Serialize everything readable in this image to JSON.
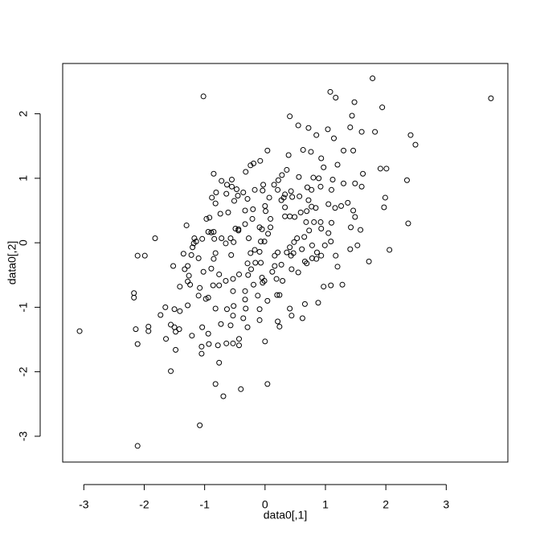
{
  "chart_data": {
    "type": "scatter",
    "x_label": "data0[,1]",
    "y_label": "data0[,2]",
    "color": "#000000",
    "xlim": [
      -3.35,
      4.02
    ],
    "ylim": [
      -3.4,
      2.78
    ],
    "xticks": [
      -3,
      -2,
      -1,
      0,
      1,
      2,
      3
    ],
    "yticks": [
      -3,
      -2,
      -1,
      0,
      1,
      2
    ],
    "x": [
      -3.07,
      -1.02,
      3.74,
      -2.11,
      -1.08,
      1.78,
      1.08,
      1.17,
      1.94,
      1.48,
      2.49,
      2.41,
      2.35,
      2.37,
      2.06,
      1.99,
      1.97,
      1.91,
      2.01,
      1.72,
      1.6,
      1.82,
      1.44,
      1.41,
      0.41,
      0.55,
      0.72,
      0.85,
      1.04,
      1.14,
      0.04,
      0.39,
      0.63,
      0.76,
      0.93,
      0.97,
      1.2,
      1.3,
      1.46,
      -0.08,
      -0.19,
      -0.24,
      -0.32,
      0.36,
      0.28,
      0.56,
      0.8,
      0.89,
      1.1,
      1.49,
      1.6,
      1.62,
      1.37,
      1.26,
      1.46,
      1.49,
      1.58,
      1.42,
      1.53,
      1.41,
      1.1,
      1.05,
      1.09,
      0.99,
      0.93,
      0.85,
      1.17,
      1.2,
      1.09,
      0.97,
      1.28,
      0.88,
      0.66,
      0.62,
      0.41,
      0.44,
      0.21,
      0.24,
      0.0,
      -0.09,
      0.04,
      -0.4,
      -0.69,
      -0.82,
      -0.76,
      -0.43,
      -0.43,
      -0.53,
      -0.64,
      -0.73,
      -0.78,
      -0.93,
      -1.05,
      -1.05,
      -0.94,
      -1.04,
      -1.21,
      -1.42,
      -1.5,
      -1.56,
      -1.48,
      -1.48,
      -1.64,
      -1.56,
      -1.93,
      -1.93,
      -2.14,
      -2.11,
      -2.17,
      -2.17,
      -2.11,
      -1.99,
      -1.82,
      -1.73,
      -1.65,
      -1.5,
      -1.41,
      -1.41,
      -1.52,
      -1.33,
      -1.28,
      -1.26,
      -1.28,
      -1.24,
      -1.28,
      -1.3,
      -1.22,
      -1.2,
      -1.14,
      -1.18,
      -1.08,
      -1.1,
      -0.98,
      -0.94,
      -0.86,
      -0.76,
      -0.65,
      -0.53,
      -0.43,
      -0.89,
      -0.84,
      -0.85,
      -0.94,
      -0.88,
      -0.82,
      -0.92,
      -0.74,
      -0.61,
      -0.72,
      -0.57,
      -0.65,
      -0.82,
      -0.52,
      -0.56,
      -0.44,
      -0.44,
      -0.49,
      -0.51,
      -0.45,
      -0.55,
      -0.47,
      -0.36,
      -0.55,
      -0.63,
      -0.29,
      -0.33,
      -0.33,
      -0.21,
      -0.2,
      -0.27,
      -0.24,
      -0.29,
      -0.23,
      -0.16,
      -0.07,
      -0.17,
      -0.09,
      -0.07,
      -0.01,
      0.05,
      -0.05,
      -0.09,
      0.09,
      0.09,
      0.01,
      0.0,
      0.07,
      -0.04,
      -0.03,
      0.15,
      0.21,
      0.22,
      0.33,
      0.31,
      0.27,
      0.43,
      0.45,
      0.57,
      0.33,
      0.33,
      0.41,
      0.49,
      0.59,
      0.69,
      0.72,
      0.77,
      0.84,
      0.68,
      0.81,
      0.73,
      0.65,
      0.53,
      0.48,
      0.41,
      0.43,
      0.47,
      0.36,
      0.21,
      0.16,
      0.27,
      0.16,
      0.12,
      -0.05,
      -0.01,
      -0.04,
      -0.19,
      0.19,
      0.29,
      0.2,
      0.24,
      0.44,
      0.55,
      0.69,
      0.66,
      0.78,
      0.61,
      0.78,
      0.86,
      0.93,
      0.92,
      1.05,
      1.16,
      1.12,
      1.3,
      0.92,
      0.7,
      0.77,
      -0.17,
      -0.53,
      -0.33,
      -0.33,
      -0.32,
      -0.36,
      -0.53,
      -0.63,
      -0.52,
      -0.57,
      -0.82,
      -0.29,
      -0.09,
      -0.12,
      0.04,
      -0.28,
      -0.76,
      -0.89,
      -0.85,
      -1.1,
      -1.02,
      -1.35,
      -1.04,
      -1.17,
      -0.97,
      -0.81,
      -0.64,
      -0.85,
      -0.72
    ],
    "values": [
      -1.37,
      2.27,
      2.24,
      -3.15,
      -2.83,
      2.55,
      2.34,
      2.25,
      2.1,
      2.18,
      1.52,
      1.67,
      0.97,
      0.3,
      -0.11,
      0.7,
      0.55,
      1.15,
      1.15,
      -0.29,
      1.72,
      1.72,
      1.97,
      1.79,
      1.96,
      1.82,
      1.78,
      1.67,
      1.76,
      1.62,
      1.43,
      1.36,
      1.44,
      1.41,
      1.31,
      1.17,
      1.21,
      1.43,
      1.43,
      1.27,
      1.23,
      1.2,
      1.1,
      1.13,
      1.05,
      1.02,
      1.01,
      1.0,
      0.82,
      0.92,
      0.87,
      1.07,
      0.62,
      0.57,
      0.5,
      0.4,
      0.2,
      0.24,
      -0.04,
      -0.1,
      0.31,
      0.15,
      0.02,
      -0.04,
      -0.2,
      -0.25,
      -0.2,
      -0.37,
      -0.66,
      -0.68,
      -0.65,
      -0.93,
      -0.95,
      -1.17,
      -1.02,
      -1.13,
      -1.22,
      -1.3,
      -1.53,
      -1.2,
      -2.19,
      -2.27,
      -2.38,
      -2.19,
      -1.86,
      -1.59,
      -1.49,
      -1.56,
      -1.56,
      -1.26,
      -1.59,
      -1.57,
      -1.61,
      -1.72,
      -1.41,
      -1.31,
      -1.44,
      -1.34,
      -1.31,
      -1.27,
      -1.38,
      -1.66,
      -1.49,
      -1.99,
      -1.3,
      -1.37,
      -1.34,
      -1.57,
      -0.78,
      -0.85,
      -0.2,
      -0.2,
      0.07,
      -1.12,
      -1.0,
      -1.03,
      -1.06,
      -0.68,
      -0.36,
      -0.41,
      -0.36,
      -0.51,
      -0.6,
      -0.65,
      -0.97,
      0.27,
      -0.19,
      -0.07,
      0.02,
      -0.01,
      -0.7,
      -0.82,
      -0.87,
      -0.85,
      -0.66,
      -0.66,
      -0.59,
      -0.56,
      -0.49,
      0.16,
      0.06,
      0.17,
      0.17,
      0.7,
      0.61,
      0.39,
      0.45,
      0.47,
      0.07,
      0.07,
      -0.01,
      -0.16,
      0.01,
      -0.19,
      0.19,
      0.21,
      0.22,
      0.65,
      0.73,
      0.87,
      0.83,
      0.78,
      0.98,
      0.9,
      0.68,
      0.5,
      0.29,
      0.37,
      0.52,
      0.07,
      -0.16,
      -0.32,
      -0.41,
      -0.31,
      -0.31,
      -0.11,
      -0.14,
      0.02,
      0.02,
      0.14,
      0.21,
      0.24,
      0.24,
      0.37,
      0.49,
      0.57,
      0.7,
      0.81,
      0.9,
      0.9,
      0.82,
      0.97,
      0.75,
      0.7,
      0.66,
      0.8,
      0.71,
      0.72,
      0.55,
      0.41,
      0.41,
      0.4,
      0.47,
      0.49,
      0.66,
      0.56,
      0.54,
      0.32,
      0.32,
      0.19,
      0.09,
      0.07,
      0.01,
      -0.07,
      -0.2,
      -0.16,
      -0.15,
      -0.15,
      -0.2,
      -0.34,
      -0.36,
      -0.45,
      -0.54,
      -0.59,
      -0.62,
      -0.65,
      -0.56,
      -0.59,
      -0.81,
      -0.81,
      -0.41,
      -0.46,
      -0.32,
      -0.29,
      -0.24,
      -0.1,
      -0.04,
      -0.15,
      0.22,
      0.32,
      0.6,
      0.54,
      0.98,
      0.92,
      0.87,
      0.86,
      0.82,
      0.82,
      -0.75,
      -0.75,
      -0.88,
      -1.02,
      -1.17,
      -1.13,
      -1.03,
      -0.98,
      -1.28,
      -1.02,
      -1.31,
      -1.03,
      -0.82,
      -0.9,
      -0.5,
      -0.49,
      -0.4,
      -0.25,
      -0.24,
      -0.45,
      -0.17,
      0.06,
      0.07,
      0.37,
      0.78,
      0.76,
      1.07,
      0.96
    ]
  }
}
